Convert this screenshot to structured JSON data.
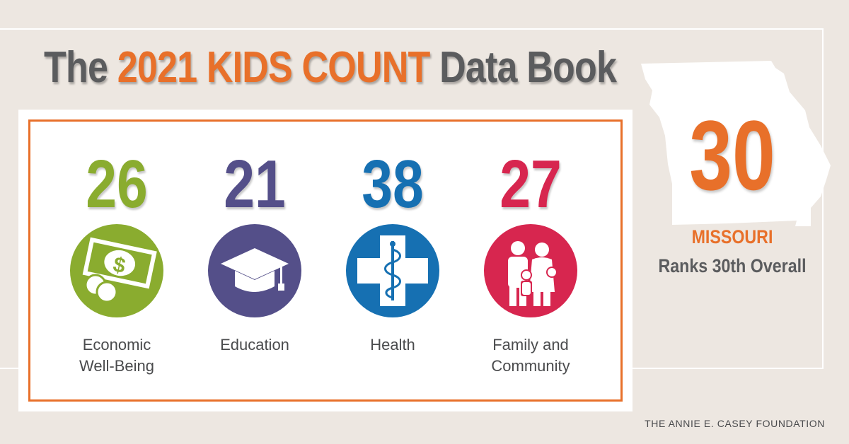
{
  "title": {
    "prefix": "The",
    "highlight": "2021 KIDS COUNT",
    "suffix": "Data Book"
  },
  "colors": {
    "background": "#ede7e1",
    "accent_orange": "#e8702a",
    "title_gray": "#5b5c5e",
    "economic_green": "#8aac2f",
    "education_purple": "#544f89",
    "health_blue": "#1670b2",
    "family_red": "#d7264f"
  },
  "domains": [
    {
      "rank": "26",
      "label": "Economic\nWell-Being",
      "icon": "money-icon",
      "color": "#8aac2f"
    },
    {
      "rank": "21",
      "label": "Education",
      "icon": "graduation-cap-icon",
      "color": "#544f89"
    },
    {
      "rank": "38",
      "label": "Health",
      "icon": "medical-cross-icon",
      "color": "#1670b2"
    },
    {
      "rank": "27",
      "label": "Family and\nCommunity",
      "icon": "family-icon",
      "color": "#d7264f"
    }
  ],
  "state": {
    "overall_rank": "30",
    "name": "MISSOURI",
    "subtitle": "Ranks 30th Overall",
    "map_icon": "missouri-map-icon"
  },
  "footer": {
    "foundation": "THE ANNIE E. CASEY FOUNDATION"
  }
}
